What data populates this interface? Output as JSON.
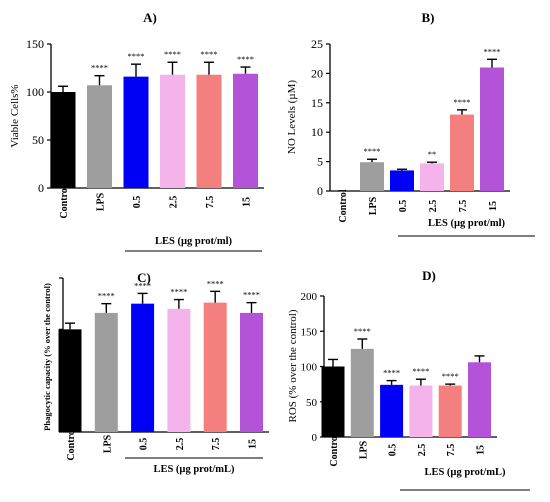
{
  "chart_data": [
    {
      "panel": "A)",
      "type": "bar",
      "title": "A)",
      "ylabel": "Viable Cells%",
      "group_label": "LES (µg prot/ml)",
      "categories": [
        "Control",
        "LPS",
        "0.5",
        "2.5",
        "7.5",
        "15"
      ],
      "values": [
        100,
        107,
        116,
        118,
        118,
        119
      ],
      "errors": [
        6,
        10,
        13,
        13,
        13,
        7
      ],
      "significance": [
        "",
        "****",
        "****",
        "****",
        "****",
        "****"
      ],
      "colors": [
        "#000000",
        "#9e9e9e",
        "#0000f5",
        "#f5b3ec",
        "#f47f7f",
        "#b354d8"
      ],
      "ylim": [
        0,
        150
      ],
      "yticks": [
        0,
        50,
        100,
        150
      ]
    },
    {
      "panel": "B)",
      "type": "bar",
      "title": "B)",
      "ylabel": "NO Levels (µM)",
      "group_label": "LES (µg prot/ml)",
      "categories": [
        "Control",
        "LPS",
        "0.5",
        "2.5",
        "7.5",
        "15"
      ],
      "values": [
        0,
        4.9,
        3.5,
        4.7,
        13,
        21
      ],
      "errors": [
        0,
        0.5,
        0.2,
        0.2,
        0.8,
        1.4
      ],
      "significance": [
        "",
        "****",
        "",
        "**",
        "****",
        "****"
      ],
      "colors": [
        "#000000",
        "#9e9e9e",
        "#0000f5",
        "#f5b3ec",
        "#f47f7f",
        "#b354d8"
      ],
      "ylim": [
        0,
        25
      ],
      "yticks": [
        0,
        5,
        10,
        15,
        20,
        25
      ]
    },
    {
      "panel": "C)",
      "type": "bar",
      "title": "C)",
      "ylabel": "Phagocytic capacity (% over the control)",
      "group_label": "LES (µg prot/mL)",
      "categories": [
        "Control",
        "LPS",
        "0.5",
        "2.5",
        "7.5",
        "15"
      ],
      "values": [
        100,
        116,
        125,
        120,
        126,
        116
      ],
      "errors": [
        6,
        9,
        10,
        9,
        11,
        10
      ],
      "significance": [
        "",
        "****",
        "****",
        "****",
        "****",
        "****"
      ],
      "colors": [
        "#000000",
        "#9e9e9e",
        "#0000f5",
        "#f5b3ec",
        "#f47f7f",
        "#b354d8"
      ],
      "ylim": [
        0,
        150
      ],
      "yticks": []
    },
    {
      "panel": "D)",
      "type": "bar",
      "title": "D)",
      "ylabel": "ROS (% over the control)",
      "group_label": "LES (µg prot/mL)",
      "categories": [
        "Control",
        "LPS",
        "0.5",
        "2.5",
        "7.5",
        "15"
      ],
      "values": [
        100,
        125,
        74,
        73,
        73,
        106
      ],
      "errors": [
        10,
        14,
        6,
        9,
        2,
        9
      ],
      "significance": [
        "",
        "****",
        "****",
        "****",
        "****",
        ""
      ],
      "colors": [
        "#000000",
        "#9e9e9e",
        "#0000f5",
        "#f5b3ec",
        "#f47f7f",
        "#b354d8"
      ],
      "ylim": [
        0,
        200
      ],
      "yticks": [
        0,
        50,
        100,
        150,
        200
      ]
    }
  ]
}
